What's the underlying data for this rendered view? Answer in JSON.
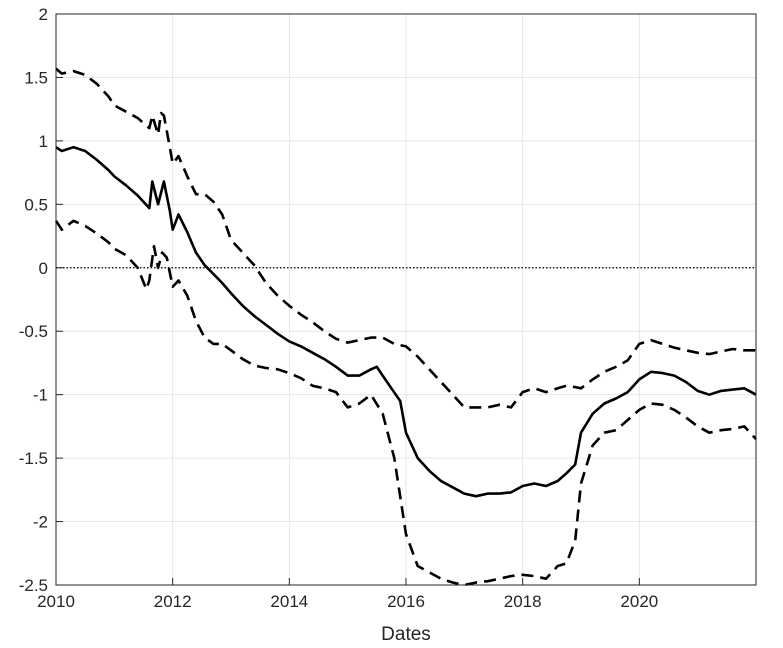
{
  "chart_data": {
    "type": "line",
    "title": "",
    "xlabel": "Dates",
    "ylabel": "",
    "xlim": [
      2010,
      2022
    ],
    "ylim": [
      -2.5,
      2
    ],
    "x_ticks": [
      2010,
      2012,
      2014,
      2016,
      2018,
      2020
    ],
    "x_tick_labels": [
      "2010",
      "2012",
      "2014",
      "2016",
      "2018",
      "2020"
    ],
    "y_ticks": [
      2,
      1.5,
      1,
      0.5,
      0,
      -0.5,
      -1,
      -1.5,
      -2,
      -2.5
    ],
    "y_tick_labels": [
      "2",
      "1.5",
      "1",
      "0.5",
      "0",
      "-0.5",
      "-1",
      "-1.5",
      "-2",
      "-2.5"
    ],
    "grid": true,
    "reference_line": {
      "y": 0,
      "style": "dotted"
    },
    "series": [
      {
        "style": "solid",
        "x": [
          2010.0,
          2010.1,
          2010.3,
          2010.5,
          2010.7,
          2010.9,
          2011.0,
          2011.2,
          2011.4,
          2011.6,
          2011.65,
          2011.75,
          2011.85,
          2011.95,
          2012.0,
          2012.1,
          2012.25,
          2012.4,
          2012.55,
          2012.7,
          2012.85,
          2013.0,
          2013.2,
          2013.4,
          2013.6,
          2013.8,
          2014.0,
          2014.2,
          2014.4,
          2014.6,
          2014.8,
          2015.0,
          2015.2,
          2015.4,
          2015.5,
          2015.6,
          2015.75,
          2015.9,
          2016.0,
          2016.2,
          2016.4,
          2016.6,
          2016.8,
          2017.0,
          2017.2,
          2017.4,
          2017.6,
          2017.8,
          2018.0,
          2018.2,
          2018.4,
          2018.6,
          2018.75,
          2018.9,
          2019.0,
          2019.2,
          2019.4,
          2019.6,
          2019.8,
          2020.0,
          2020.2,
          2020.4,
          2020.6,
          2020.8,
          2021.0,
          2021.2,
          2021.4,
          2021.6,
          2021.8,
          2022.0
        ],
        "y": [
          0.95,
          0.92,
          0.95,
          0.92,
          0.85,
          0.77,
          0.72,
          0.65,
          0.57,
          0.47,
          0.68,
          0.5,
          0.68,
          0.45,
          0.3,
          0.42,
          0.28,
          0.12,
          0.02,
          -0.05,
          -0.12,
          -0.2,
          -0.3,
          -0.38,
          -0.45,
          -0.52,
          -0.58,
          -0.62,
          -0.67,
          -0.72,
          -0.78,
          -0.85,
          -0.85,
          -0.8,
          -0.78,
          -0.85,
          -0.95,
          -1.05,
          -1.3,
          -1.5,
          -1.6,
          -1.68,
          -1.73,
          -1.78,
          -1.8,
          -1.78,
          -1.78,
          -1.77,
          -1.72,
          -1.7,
          -1.72,
          -1.68,
          -1.62,
          -1.55,
          -1.3,
          -1.15,
          -1.07,
          -1.03,
          -0.98,
          -0.88,
          -0.82,
          -0.83,
          -0.85,
          -0.9,
          -0.97,
          -1.0,
          -0.97,
          -0.96,
          -0.95,
          -1.0
        ]
      },
      {
        "style": "dashed",
        "x": [
          2010.0,
          2010.1,
          2010.3,
          2010.5,
          2010.7,
          2010.9,
          2011.0,
          2011.2,
          2011.4,
          2011.6,
          2011.65,
          2011.75,
          2011.8,
          2011.85,
          2011.95,
          2012.0,
          2012.1,
          2012.25,
          2012.4,
          2012.55,
          2012.7,
          2012.85,
          2013.0,
          2013.2,
          2013.4,
          2013.6,
          2013.8,
          2014.0,
          2014.2,
          2014.4,
          2014.6,
          2014.8,
          2015.0,
          2015.2,
          2015.4,
          2015.6,
          2015.8,
          2016.0,
          2016.2,
          2016.4,
          2016.6,
          2016.8,
          2017.0,
          2017.2,
          2017.4,
          2017.6,
          2017.8,
          2018.0,
          2018.2,
          2018.4,
          2018.6,
          2018.75,
          2018.9,
          2019.0,
          2019.2,
          2019.4,
          2019.6,
          2019.8,
          2020.0,
          2020.2,
          2020.4,
          2020.6,
          2020.8,
          2021.0,
          2021.2,
          2021.4,
          2021.6,
          2021.8,
          2022.0
        ],
        "y": [
          1.57,
          1.53,
          1.55,
          1.52,
          1.45,
          1.35,
          1.28,
          1.23,
          1.18,
          1.1,
          1.2,
          1.05,
          1.22,
          1.2,
          0.95,
          0.82,
          0.88,
          0.72,
          0.58,
          0.58,
          0.52,
          0.42,
          0.22,
          0.12,
          0.02,
          -0.12,
          -0.22,
          -0.3,
          -0.37,
          -0.43,
          -0.5,
          -0.56,
          -0.59,
          -0.57,
          -0.55,
          -0.55,
          -0.6,
          -0.62,
          -0.7,
          -0.8,
          -0.9,
          -1.0,
          -1.1,
          -1.1,
          -1.1,
          -1.08,
          -1.1,
          -0.98,
          -0.95,
          -0.98,
          -0.95,
          -0.93,
          -0.94,
          -0.95,
          -0.88,
          -0.82,
          -0.78,
          -0.73,
          -0.6,
          -0.57,
          -0.6,
          -0.63,
          -0.65,
          -0.67,
          -0.68,
          -0.66,
          -0.64,
          -0.65,
          -0.65
        ]
      },
      {
        "style": "dashed",
        "x": [
          2010.0,
          2010.1,
          2010.3,
          2010.5,
          2010.7,
          2010.9,
          2011.0,
          2011.2,
          2011.4,
          2011.55,
          2011.6,
          2011.68,
          2011.75,
          2011.82,
          2011.9,
          2012.0,
          2012.1,
          2012.25,
          2012.4,
          2012.55,
          2012.7,
          2012.85,
          2013.0,
          2013.2,
          2013.4,
          2013.6,
          2013.8,
          2014.0,
          2014.2,
          2014.4,
          2014.6,
          2014.8,
          2015.0,
          2015.2,
          2015.4,
          2015.6,
          2015.8,
          2016.0,
          2016.2,
          2016.4,
          2016.6,
          2016.8,
          2017.0,
          2017.2,
          2017.4,
          2017.6,
          2017.8,
          2018.0,
          2018.2,
          2018.4,
          2018.6,
          2018.75,
          2018.9,
          2019.0,
          2019.2,
          2019.4,
          2019.6,
          2019.8,
          2020.0,
          2020.2,
          2020.4,
          2020.6,
          2020.8,
          2021.0,
          2021.2,
          2021.4,
          2021.6,
          2021.8,
          2022.0
        ],
        "y": [
          0.37,
          0.3,
          0.37,
          0.33,
          0.27,
          0.2,
          0.15,
          0.1,
          0.0,
          -0.17,
          -0.1,
          0.17,
          0.0,
          0.12,
          0.08,
          -0.15,
          -0.1,
          -0.22,
          -0.42,
          -0.55,
          -0.6,
          -0.6,
          -0.65,
          -0.72,
          -0.77,
          -0.79,
          -0.8,
          -0.83,
          -0.87,
          -0.93,
          -0.95,
          -0.98,
          -1.1,
          -1.07,
          -1.0,
          -1.15,
          -1.5,
          -2.1,
          -2.35,
          -2.4,
          -2.45,
          -2.48,
          -2.5,
          -2.48,
          -2.47,
          -2.45,
          -2.43,
          -2.42,
          -2.43,
          -2.45,
          -2.35,
          -2.33,
          -2.15,
          -1.7,
          -1.4,
          -1.3,
          -1.28,
          -1.2,
          -1.12,
          -1.07,
          -1.08,
          -1.12,
          -1.18,
          -1.25,
          -1.3,
          -1.28,
          -1.27,
          -1.25,
          -1.35
        ]
      }
    ]
  }
}
